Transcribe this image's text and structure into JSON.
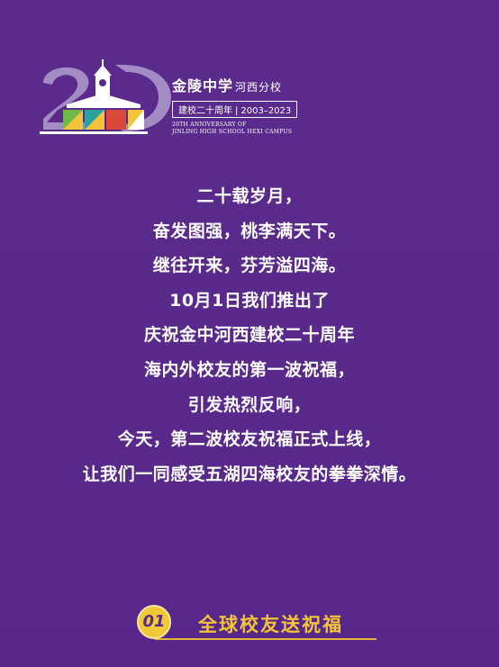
{
  "logo": {
    "school_name": "金陵中学",
    "campus": "河西分校",
    "anniversary_label": "建校二十周年",
    "years": "2003–2023",
    "en_line1": "20TH ANNIVERSARY OF",
    "en_line2": "JINLING HIGH SCHOOL HEXI CAMPUS",
    "colors": {
      "numeral": "#a38bc4",
      "accent_yellow": "#f3c43a",
      "accent_red": "#d94a3a",
      "accent_green": "#6fb84a",
      "accent_teal": "#2aa3a0"
    }
  },
  "body_lines": [
    "二十载岁月，",
    "奋发图强，桃李满天下。",
    "继往开来，芬芳溢四海。",
    "10月1日我们推出了",
    "庆祝金中河西建校二十周年",
    "海内外校友的第一波祝福，",
    "引发热烈反响，",
    "今天，第二波校友祝福正式上线，",
    "让我们一同感受五湖四海校友的拳拳深情。"
  ],
  "section": {
    "number": "01",
    "title": "全球校友送祝福"
  }
}
